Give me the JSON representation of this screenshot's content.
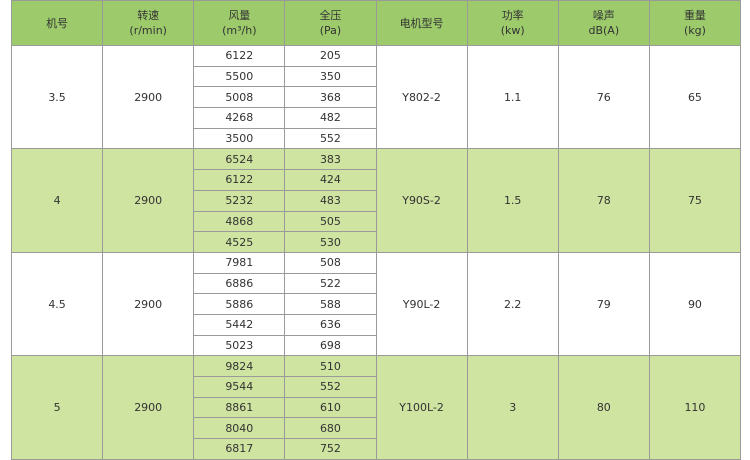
{
  "headers": [
    {
      "l1": "机号",
      "l2": ""
    },
    {
      "l1": "转速",
      "l2": "(r/min)"
    },
    {
      "l1": "风量",
      "l2": "(m³/h)"
    },
    {
      "l1": "全压",
      "l2": "(Pa)"
    },
    {
      "l1": "电机型号",
      "l2": ""
    },
    {
      "l1": "功率",
      "l2": "(kw)"
    },
    {
      "l1": "噪声",
      "l2": "dB(A)"
    },
    {
      "l1": "重量",
      "l2": "(kg)"
    }
  ],
  "groups": [
    {
      "model": "3.5",
      "speed": "2900",
      "motor": "Y802-2",
      "power": "1.1",
      "noise": "76",
      "weight": "65",
      "flow": [
        "6122",
        "5500",
        "5008",
        "4268",
        "3500"
      ],
      "pressure": [
        "205",
        "350",
        "368",
        "482",
        "552"
      ]
    },
    {
      "model": "4",
      "speed": "2900",
      "motor": "Y90S-2",
      "power": "1.5",
      "noise": "78",
      "weight": "75",
      "flow": [
        "6524",
        "6122",
        "5232",
        "4868",
        "4525"
      ],
      "pressure": [
        "383",
        "424",
        "483",
        "505",
        "530"
      ]
    },
    {
      "model": "4.5",
      "speed": "2900",
      "motor": "Y90L-2",
      "power": "2.2",
      "noise": "79",
      "weight": "90",
      "flow": [
        "7981",
        "6886",
        "5886",
        "5442",
        "5023"
      ],
      "pressure": [
        "508",
        "522",
        "588",
        "636",
        "698"
      ]
    },
    {
      "model": "5",
      "speed": "2900",
      "motor": "Y100L-2",
      "power": "3",
      "noise": "80",
      "weight": "110",
      "flow": [
        "9824",
        "9544",
        "8861",
        "8040",
        "6817"
      ],
      "pressure": [
        "510",
        "552",
        "610",
        "680",
        "752"
      ]
    }
  ],
  "colors": {
    "header": "#9dcb6b",
    "alt_row": "#cfe4a1",
    "border": "#9a9a9a"
  }
}
